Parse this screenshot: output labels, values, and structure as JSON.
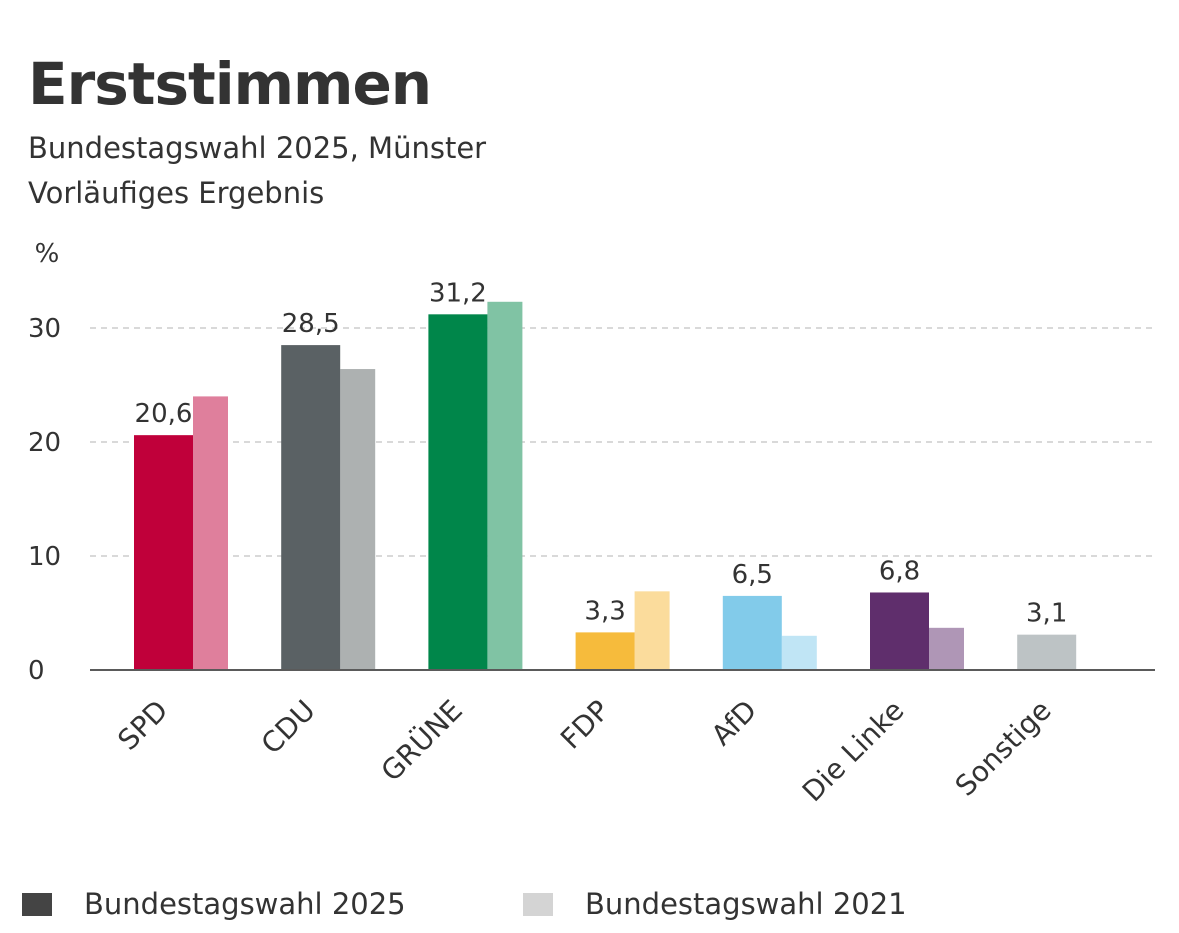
{
  "title": "Erststimmen",
  "subtitle_line1": "Bundestagswahl 2025, Münster",
  "subtitle_line2": "Vorläufiges Ergebnis",
  "legend": [
    {
      "label": "Bundestagswahl 2025",
      "color": "#444444"
    },
    {
      "label": "Bundestagswahl 2021",
      "color": "#d4d4d4"
    }
  ],
  "chart_data": {
    "type": "bar",
    "ylabel": "%",
    "ylim": [
      0,
      30
    ],
    "yticks": [
      0,
      10,
      20,
      30
    ],
    "grid": true,
    "legend_position": "bottom",
    "categories": [
      "SPD",
      "CDU",
      "GRÜNE",
      "FDP",
      "AfD",
      "Die Linke",
      "Sonstige"
    ],
    "series": [
      {
        "name": "Bundestagswahl 2025",
        "values": [
          20.6,
          28.5,
          31.2,
          3.3,
          6.5,
          6.8,
          3.1
        ],
        "labels": [
          "20,6",
          "28,5",
          "31,2",
          "3,3",
          "6,5",
          "6,8",
          "3,1"
        ],
        "colors": [
          "#c0003a",
          "#5a6164",
          "#00864a",
          "#f6bb3c",
          "#82cbea",
          "#5f2e6c",
          "#bdc3c5"
        ]
      },
      {
        "name": "Bundestagswahl 2021",
        "values": [
          24.0,
          26.4,
          32.3,
          6.9,
          3.0,
          3.7,
          null
        ],
        "colors": [
          "#df7f9c",
          "#adb1b1",
          "#80c3a4",
          "#fbdc9c",
          "#c0e5f5",
          "#af96b6",
          null
        ]
      }
    ]
  }
}
